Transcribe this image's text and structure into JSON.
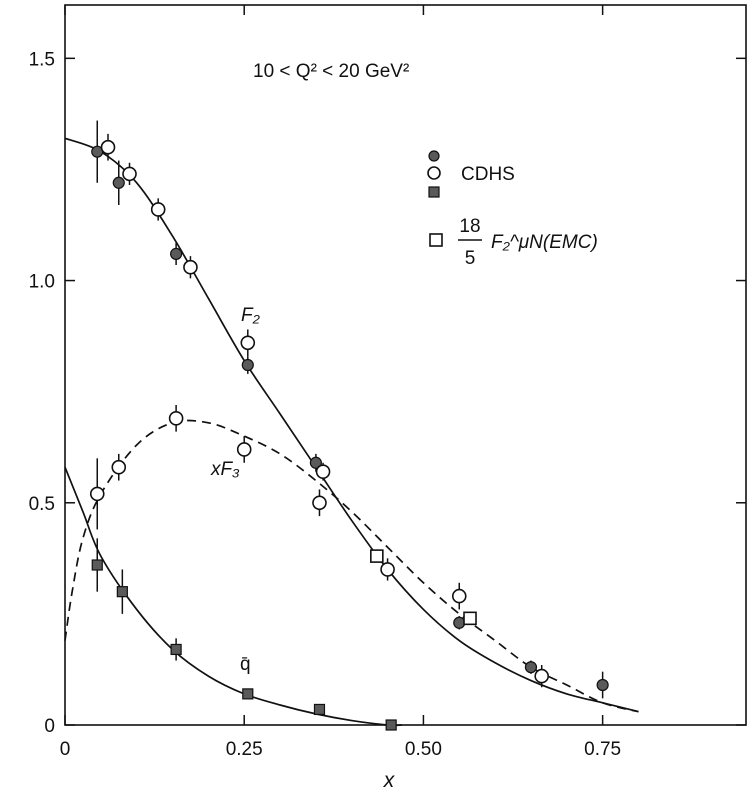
{
  "chart_data": {
    "type": "scatter",
    "title": "",
    "xlabel": "x",
    "ylabel": "",
    "xlim": [
      0,
      0.95
    ],
    "ylim": [
      0,
      1.62
    ],
    "xticks": [
      0,
      0.25,
      0.5,
      0.75
    ],
    "xtick_labels": [
      "0",
      "0.25",
      "0.50",
      "0.75"
    ],
    "yticks": [
      0,
      0.5,
      1.0,
      1.5
    ],
    "ytick_labels": [
      "0",
      "0.5",
      "1.0",
      "1.5"
    ],
    "annotation": {
      "q2_range": "10 < Q² < 20 GeV²"
    },
    "curve_labels": {
      "f2": "F₂",
      "xf3": "xF₃",
      "qbar": "q̄"
    },
    "legend": {
      "position": "top-right",
      "cdhs_label": "CDHS",
      "emc_numerator": "18",
      "emc_denominator": "5",
      "emc_label": "F₂^μN(EMC)"
    },
    "series": [
      {
        "key": "F2",
        "marker": "filled-circle",
        "color": "#5a5a5a",
        "points": [
          {
            "x": 0.045,
            "y": 1.29,
            "err": 0.07
          },
          {
            "x": 0.075,
            "y": 1.22,
            "err": 0.05
          },
          {
            "x": 0.155,
            "y": 1.06,
            "err": 0.025
          },
          {
            "x": 0.255,
            "y": 0.81,
            "err": 0.02
          },
          {
            "x": 0.35,
            "y": 0.59,
            "err": 0.02
          },
          {
            "x": 0.55,
            "y": 0.23,
            "err": 0.015
          },
          {
            "x": 0.65,
            "y": 0.13,
            "err": 0.015
          },
          {
            "x": 0.75,
            "y": 0.09,
            "err": 0.03
          }
        ],
        "curve": [
          [
            0,
            1.32
          ],
          [
            0.05,
            1.29
          ],
          [
            0.1,
            1.22
          ],
          [
            0.15,
            1.1
          ],
          [
            0.2,
            0.96
          ],
          [
            0.25,
            0.82
          ],
          [
            0.3,
            0.7
          ],
          [
            0.35,
            0.58
          ],
          [
            0.4,
            0.46
          ],
          [
            0.45,
            0.35
          ],
          [
            0.5,
            0.26
          ],
          [
            0.55,
            0.19
          ],
          [
            0.6,
            0.14
          ],
          [
            0.65,
            0.1
          ],
          [
            0.7,
            0.07
          ],
          [
            0.75,
            0.05
          ],
          [
            0.8,
            0.03
          ]
        ]
      },
      {
        "key": "xF3",
        "marker": "open-circle",
        "color": "#111111",
        "points": [
          {
            "x": 0.06,
            "y": 1.3,
            "err": 0.03
          },
          {
            "x": 0.09,
            "y": 1.24,
            "err": 0.025
          },
          {
            "x": 0.13,
            "y": 1.16,
            "err": 0.025
          },
          {
            "x": 0.175,
            "y": 1.03,
            "err": 0.025
          },
          {
            "x": 0.255,
            "y": 0.86,
            "err": 0.03
          },
          {
            "x": 0.36,
            "y": 0.57,
            "err": 0.02
          },
          {
            "x": 0.045,
            "y": 0.52,
            "err": 0.08
          },
          {
            "x": 0.075,
            "y": 0.58,
            "err": 0.03
          },
          {
            "x": 0.155,
            "y": 0.69,
            "err": 0.03
          },
          {
            "x": 0.25,
            "y": 0.62,
            "err": 0.03
          },
          {
            "x": 0.355,
            "y": 0.5,
            "err": 0.03
          },
          {
            "x": 0.45,
            "y": 0.35,
            "err": 0.025
          },
          {
            "x": 0.55,
            "y": 0.29,
            "err": 0.03
          },
          {
            "x": 0.665,
            "y": 0.11,
            "err": 0.025
          }
        ],
        "curve": [
          [
            0,
            0.19
          ],
          [
            0.01,
            0.3
          ],
          [
            0.025,
            0.42
          ],
          [
            0.05,
            0.52
          ],
          [
            0.1,
            0.63
          ],
          [
            0.15,
            0.68
          ],
          [
            0.2,
            0.68
          ],
          [
            0.25,
            0.65
          ],
          [
            0.3,
            0.61
          ],
          [
            0.35,
            0.55
          ],
          [
            0.4,
            0.48
          ],
          [
            0.45,
            0.4
          ],
          [
            0.5,
            0.32
          ],
          [
            0.55,
            0.25
          ],
          [
            0.6,
            0.19
          ],
          [
            0.65,
            0.13
          ],
          [
            0.7,
            0.09
          ],
          [
            0.75,
            0.05
          ],
          [
            0.8,
            0.03
          ]
        ]
      },
      {
        "key": "qbar",
        "marker": "filled-square",
        "color": "#5a5a5a",
        "points": [
          {
            "x": 0.045,
            "y": 0.36,
            "err": 0.06
          },
          {
            "x": 0.08,
            "y": 0.3,
            "err": 0.05
          },
          {
            "x": 0.155,
            "y": 0.17,
            "err": 0.025
          },
          {
            "x": 0.255,
            "y": 0.07,
            "err": 0.01
          },
          {
            "x": 0.355,
            "y": 0.035,
            "err": 0.01
          },
          {
            "x": 0.455,
            "y": 0.0,
            "err": 0.01
          }
        ],
        "curve": [
          [
            0,
            0.58
          ],
          [
            0.025,
            0.48
          ],
          [
            0.05,
            0.38
          ],
          [
            0.1,
            0.26
          ],
          [
            0.15,
            0.17
          ],
          [
            0.2,
            0.11
          ],
          [
            0.25,
            0.07
          ],
          [
            0.3,
            0.045
          ],
          [
            0.35,
            0.025
          ],
          [
            0.4,
            0.01
          ],
          [
            0.45,
            0.0
          ],
          [
            0.47,
            0.0
          ]
        ]
      },
      {
        "key": "EMC",
        "marker": "open-square",
        "color": "#111111",
        "points": [
          {
            "x": 0.435,
            "y": 0.38,
            "err": 0
          },
          {
            "x": 0.565,
            "y": 0.24,
            "err": 0
          }
        ]
      }
    ]
  }
}
